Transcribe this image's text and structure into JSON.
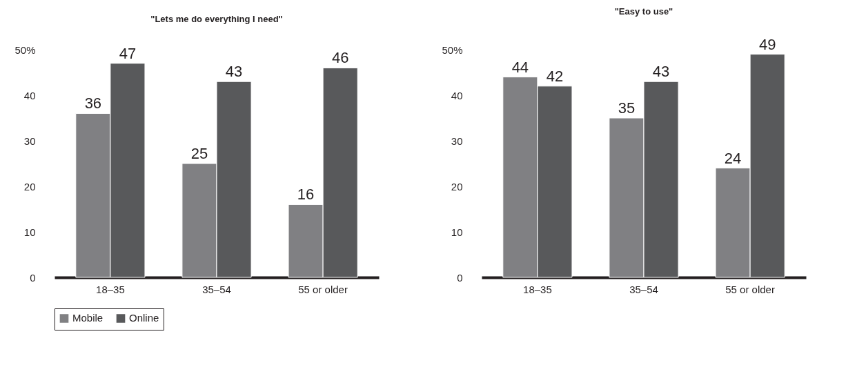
{
  "chart_data": [
    {
      "type": "bar",
      "title": "\"Lets me do everything I need\"",
      "categories": [
        "18–35",
        "35–54",
        "55 or older"
      ],
      "series": [
        {
          "name": "Mobile",
          "color": "#808083",
          "values": [
            36,
            25,
            16
          ]
        },
        {
          "name": "Online",
          "color": "#58595b",
          "values": [
            47,
            43,
            46
          ]
        }
      ],
      "ylim": [
        0,
        50
      ],
      "yticks": [
        0,
        10,
        20,
        30,
        40,
        {
          "value": 50,
          "label": "50%"
        }
      ],
      "grid": false,
      "legend": "bottom",
      "data_labels": true
    },
    {
      "type": "bar",
      "title": "\"Easy to use\"",
      "categories": [
        "18–35",
        "35–54",
        "55 or older"
      ],
      "series": [
        {
          "name": "Mobile",
          "color": "#808083",
          "values": [
            44,
            35,
            24
          ]
        },
        {
          "name": "Online",
          "color": "#58595b",
          "values": [
            42,
            43,
            49
          ]
        }
      ],
      "ylim": [
        0,
        50
      ],
      "yticks": [
        0,
        10,
        20,
        30,
        40,
        {
          "value": 50,
          "label": "50%"
        }
      ],
      "grid": false,
      "legend": "bottom",
      "data_labels": true
    }
  ]
}
